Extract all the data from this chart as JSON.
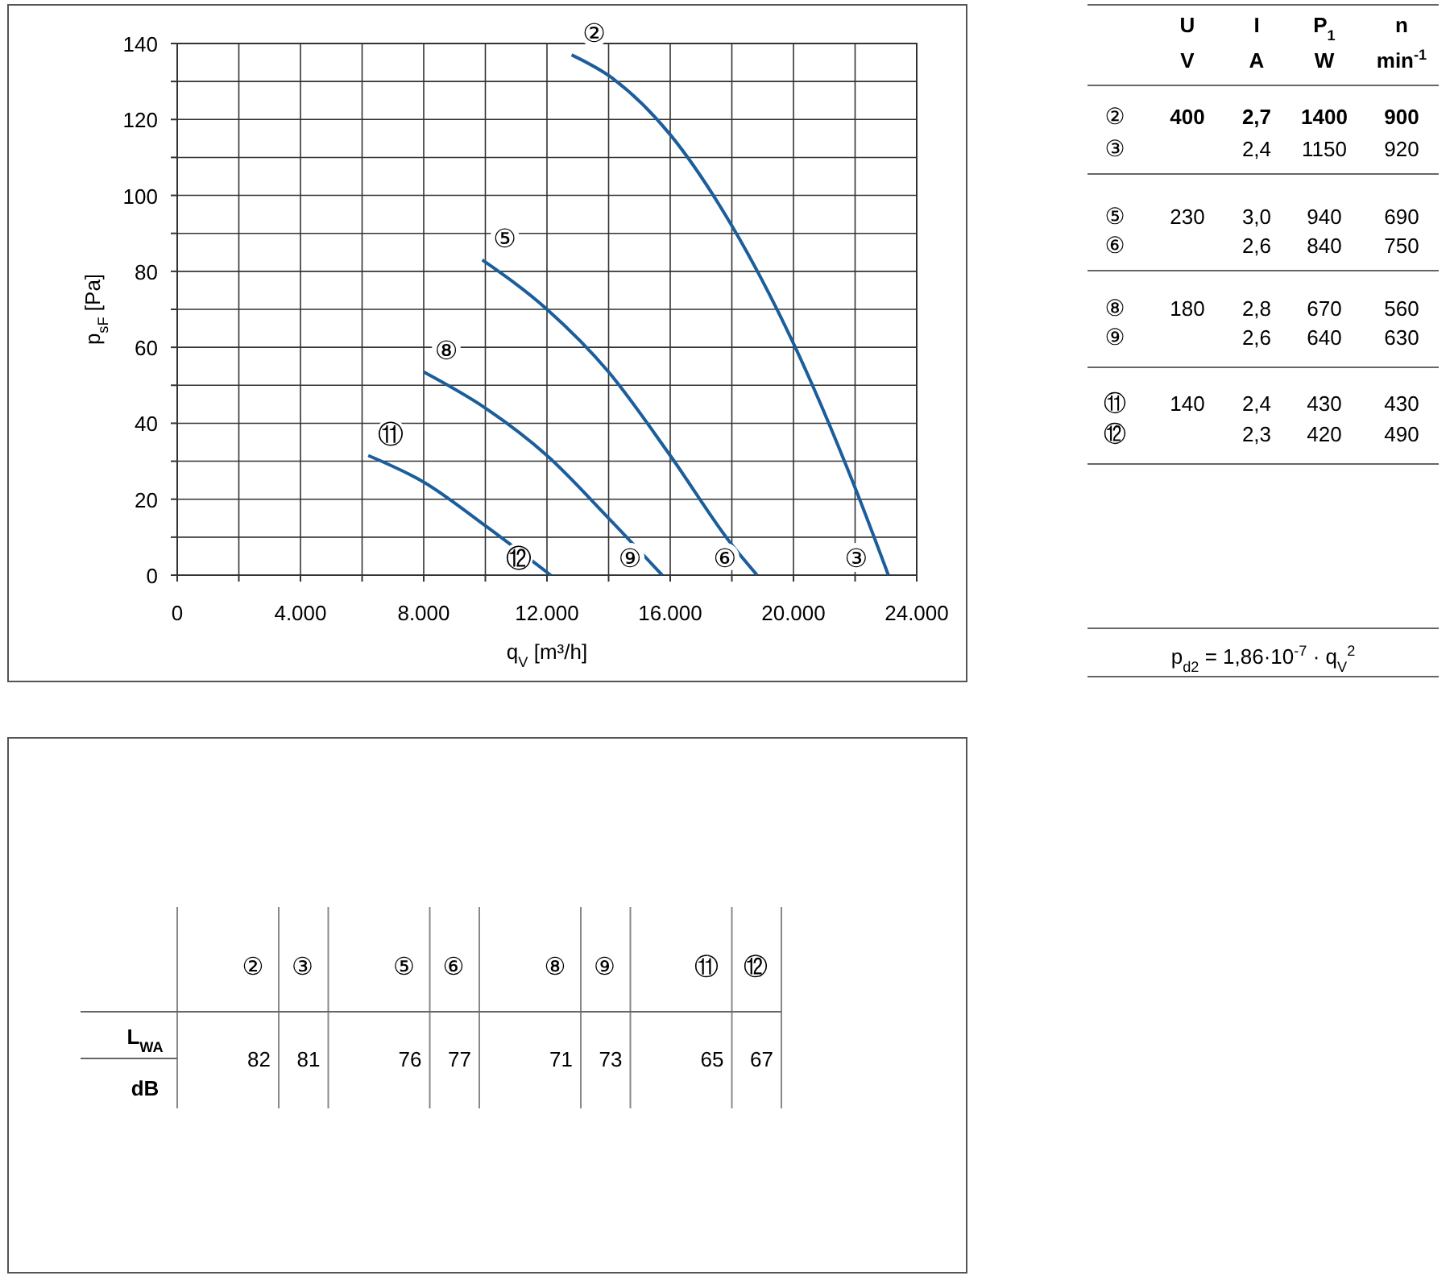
{
  "chart_data": [
    {
      "type": "line",
      "xlabel": "q$_{V}$ [m³/h]",
      "ylabel": "p$_{sF}$ [Pa]",
      "xlim": [
        0,
        24000
      ],
      "ylim": [
        0,
        140
      ],
      "xticks": [
        0,
        {
          "value": 2000,
          "label": null
        },
        {
          "value": 4000,
          "label": "4.000"
        },
        {
          "value": 6000,
          "label": null
        },
        {
          "value": 8000,
          "label": "8.000"
        },
        {
          "value": 10000,
          "label": null
        },
        {
          "value": 12000,
          "label": "12.000"
        },
        {
          "value": 14000,
          "label": null
        },
        {
          "value": 16000,
          "label": "16.000"
        },
        {
          "value": 18000,
          "label": null
        },
        {
          "value": 20000,
          "label": "20.000"
        },
        {
          "value": 22000,
          "label": null
        },
        {
          "value": 24000,
          "label": "24.000"
        }
      ],
      "yticks": [
        0,
        {
          "value": 10,
          "label": null
        },
        20,
        {
          "value": 30,
          "label": null
        },
        40,
        {
          "value": 50,
          "label": null
        },
        60,
        {
          "value": 70,
          "label": null
        },
        80,
        {
          "value": 90,
          "label": null
        },
        100,
        {
          "value": 110,
          "label": null
        },
        120,
        {
          "value": 130,
          "label": null
        },
        140
      ],
      "grid": true,
      "marker": "none",
      "line_style": "solid",
      "series": [
        {
          "color": "#1b5e9b",
          "x": [
            12800,
            14100,
            16000,
            18000,
            20000,
            22000,
            23080
          ],
          "values": [
            137,
            131,
            116,
            92,
            61,
            23,
            0
          ]
        },
        {
          "color": "#1b5e9b",
          "x": [
            9900,
            12000,
            14000,
            16000,
            18000,
            18820
          ],
          "values": [
            83,
            70,
            53.5,
            31.5,
            8,
            0
          ]
        },
        {
          "color": "#1b5e9b",
          "x": [
            8000,
            10000,
            12000,
            14000,
            15740
          ],
          "values": [
            53.5,
            44,
            31.5,
            15,
            0
          ]
        },
        {
          "color": "#1b5e9b",
          "x": [
            6200,
            8000,
            10000,
            12120
          ],
          "values": [
            31.5,
            24.5,
            13,
            0
          ]
        }
      ],
      "annotations": [
        {
          "text": "②",
          "x": 12800,
          "y": 137
        },
        {
          "text": "③",
          "x": 23080,
          "y": 0
        },
        {
          "text": "⑤",
          "x": 9900,
          "y": 83
        },
        {
          "text": "⑥",
          "x": 18820,
          "y": 0
        },
        {
          "text": "⑧",
          "x": 8000,
          "y": 53.5
        },
        {
          "text": "⑨",
          "x": 15740,
          "y": 0
        },
        {
          "text": "⑪",
          "x": 6200,
          "y": 31.5
        },
        {
          "text": "⑫",
          "x": 12120,
          "y": 0
        }
      ]
    },
    {
      "type": "other",
      "categories": [
        "U",
        "I",
        "P$_{1}$",
        "n"
      ],
      "y_categories": [
        null,
        "②",
        "③",
        "⑤",
        "⑥",
        "⑧",
        "⑨",
        "⑪",
        "⑫"
      ],
      "cell_labels": [
        [
          "V",
          "A",
          "W",
          "min$^{-1}$"
        ],
        [
          "400",
          "2,7",
          "1400",
          "900"
        ],
        [
          null,
          "2,4",
          "1150",
          "920"
        ],
        [
          "230",
          "3,0",
          "940",
          "690"
        ],
        [
          null,
          "2,6",
          "840",
          "750"
        ],
        [
          "180",
          "2,8",
          "670",
          "560"
        ],
        [
          null,
          "2,6",
          "640",
          "630"
        ],
        [
          "140",
          "2,4",
          "430",
          "430"
        ],
        [
          null,
          "2,3",
          "420",
          "490"
        ]
      ],
      "annotations": [
        "p$_{d2}$ = 1,86·10$^{-7}$ · q$_{V}$$^{2}$"
      ]
    },
    {
      "type": "other",
      "categories": [
        "②",
        "③",
        "⑤",
        "⑥",
        "⑧",
        "⑨",
        "⑪",
        "⑫"
      ],
      "y_categories": [
        "L$_{WA}$",
        "dB"
      ],
      "cell_labels": [
        [
          "82",
          "81",
          "76",
          "77",
          "71",
          "73",
          "65",
          "67"
        ],
        [
          null,
          null,
          null,
          null,
          null,
          null,
          null,
          null
        ]
      ]
    }
  ]
}
